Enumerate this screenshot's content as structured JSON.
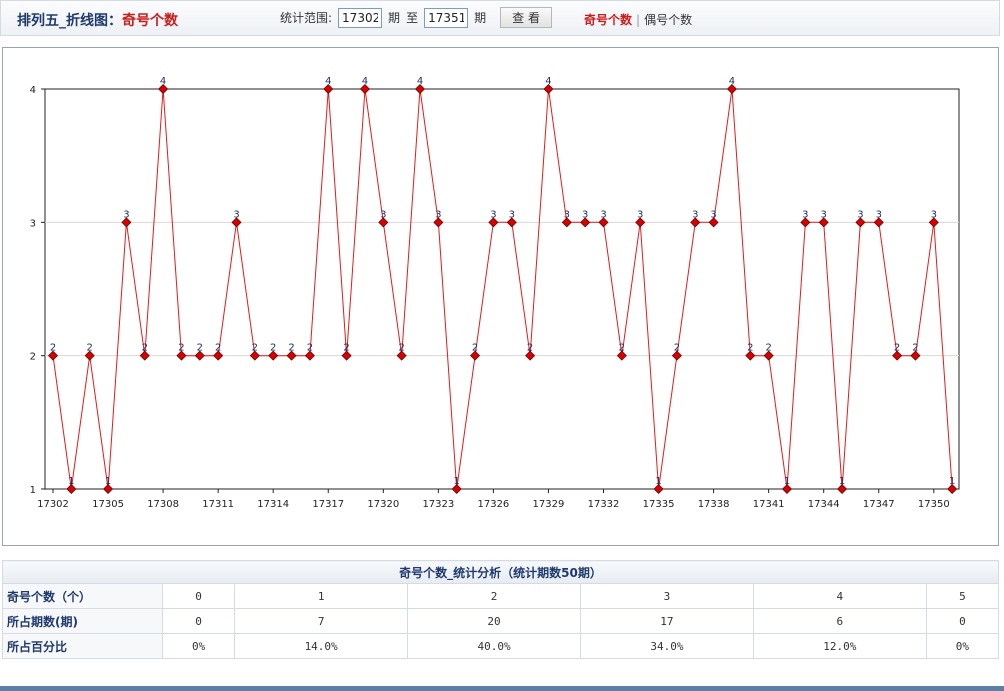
{
  "header": {
    "title_prefix": "排列五_折线图：",
    "title_highlight": "奇号个数",
    "range_label": "统计范围:",
    "range_from": "17302",
    "period_label": "期",
    "to_label": "至",
    "range_to": "17351",
    "period_label2": "期",
    "query_button": "查 看",
    "mode_active": "奇号个数",
    "mode_separator": "|",
    "mode_other": "偶号个数"
  },
  "colors": {
    "line": "#e31b1b",
    "marker": "#d90000",
    "label": "#1f2f6b",
    "title_accent": "#cc1b1b",
    "header_text": "#1f3a6d"
  },
  "chart_data": {
    "type": "line",
    "x": [
      17302,
      17303,
      17304,
      17305,
      17306,
      17307,
      17308,
      17309,
      17310,
      17311,
      17312,
      17313,
      17314,
      17315,
      17316,
      17317,
      17318,
      17319,
      17320,
      17321,
      17322,
      17323,
      17324,
      17325,
      17326,
      17327,
      17328,
      17329,
      17330,
      17331,
      17332,
      17333,
      17334,
      17335,
      17336,
      17337,
      17338,
      17339,
      17340,
      17341,
      17342,
      17343,
      17344,
      17345,
      17346,
      17347,
      17348,
      17349,
      17350,
      17351
    ],
    "values": [
      2,
      1,
      2,
      1,
      3,
      2,
      4,
      2,
      2,
      2,
      3,
      2,
      2,
      2,
      2,
      4,
      2,
      4,
      3,
      2,
      4,
      3,
      1,
      2,
      3,
      3,
      2,
      4,
      3,
      3,
      3,
      2,
      3,
      1,
      2,
      3,
      3,
      4,
      2,
      2,
      1,
      3,
      3,
      1,
      3,
      3,
      2,
      2,
      3,
      1
    ],
    "xtick_labels": [
      "17302",
      "17305",
      "17308",
      "17311",
      "17314",
      "17317",
      "17320",
      "17323",
      "17326",
      "17329",
      "17332",
      "17335",
      "17338",
      "17341",
      "17344",
      "17347",
      "17350"
    ],
    "ytick_labels": [
      "1",
      "2",
      "3",
      "4"
    ],
    "ylim": [
      1,
      4
    ],
    "grid": true,
    "marker": "diamond",
    "data_labels": true
  },
  "stats": {
    "caption": "奇号个数_统计分析（统计期数50期）",
    "rows": [
      {
        "label": "奇号个数（个）",
        "cells": [
          "0",
          "1",
          "2",
          "3",
          "4",
          "5"
        ]
      },
      {
        "label": "所占期数(期)",
        "cells": [
          "0",
          "7",
          "20",
          "17",
          "6",
          "0"
        ]
      },
      {
        "label": "所占百分比",
        "cells": [
          "0%",
          "14.0%",
          "40.0%",
          "34.0%",
          "12.0%",
          "0%"
        ]
      }
    ]
  }
}
